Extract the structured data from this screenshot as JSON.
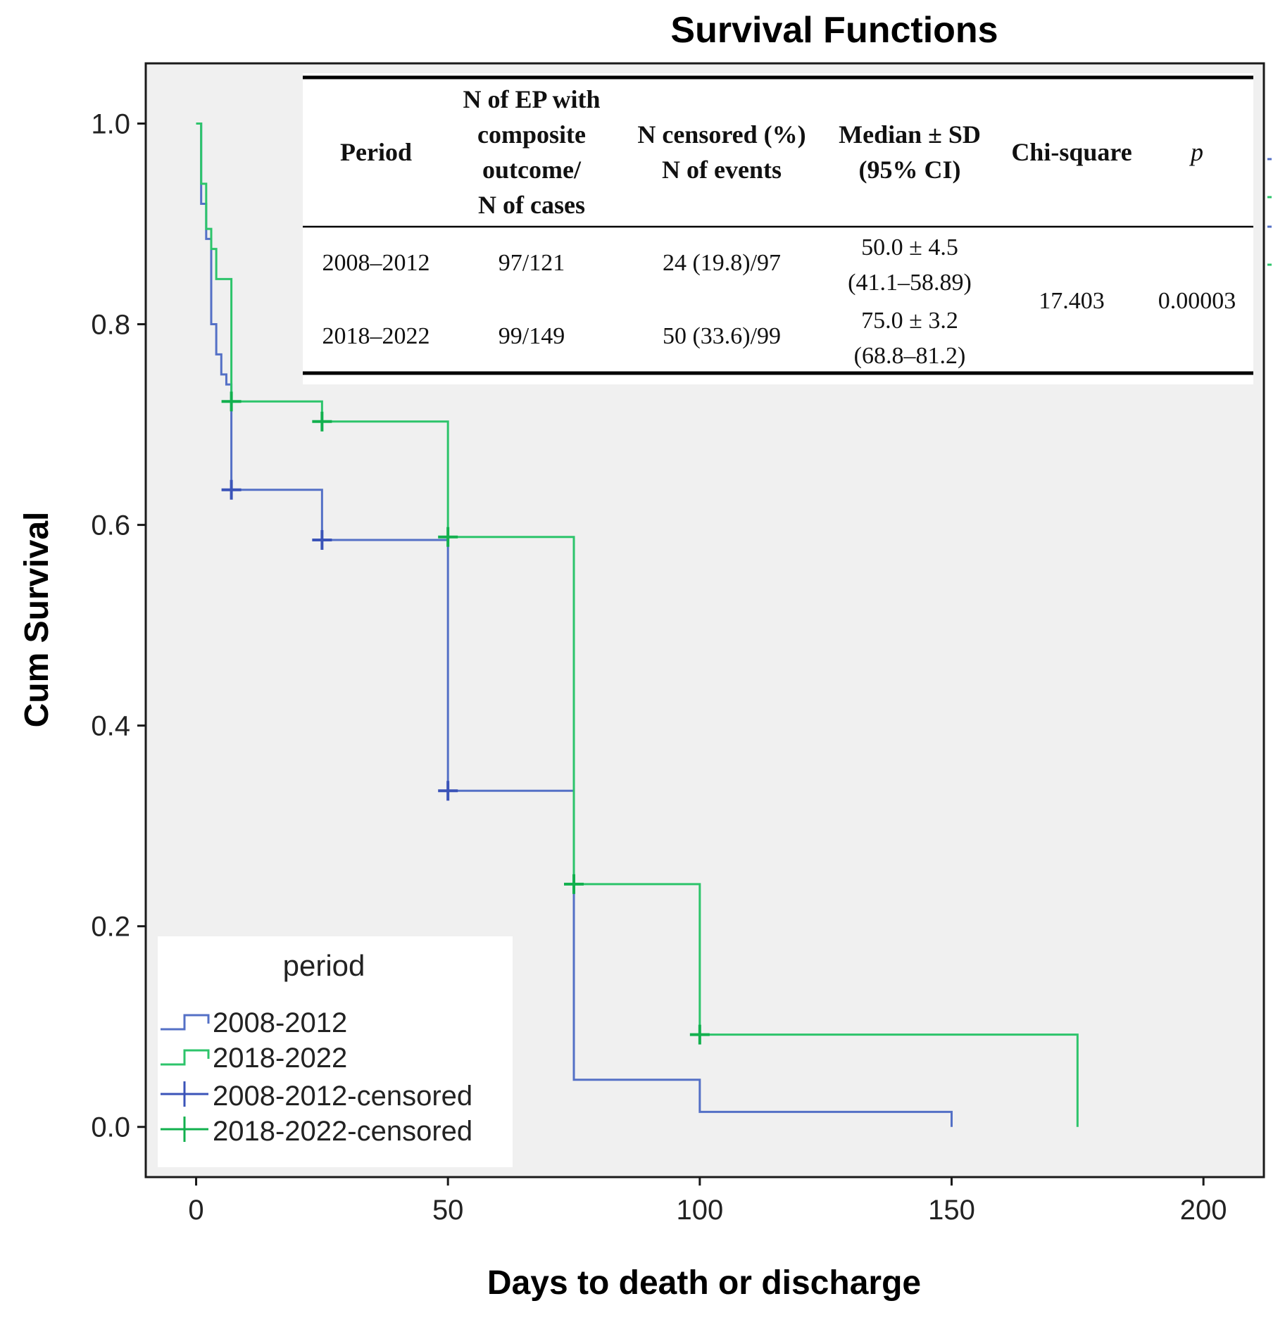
{
  "chart_data": {
    "type": "line",
    "subtype": "kaplan-meier-step",
    "title": "Survival Functions",
    "xlabel": "Days to death or discharge",
    "ylabel": "Cum Survival",
    "xlim": [
      -10,
      212
    ],
    "ylim": [
      -0.05,
      1.06
    ],
    "xticks": [
      0,
      50,
      100,
      150,
      200
    ],
    "yticks": [
      0.0,
      0.2,
      0.4,
      0.6,
      0.8,
      1.0
    ],
    "xtick_labels": [
      "0",
      "50",
      "100",
      "150",
      "200"
    ],
    "ytick_labels": [
      "0.0",
      "0.2",
      "0.4",
      "0.6",
      "0.8",
      "1.0"
    ],
    "legend": {
      "title": "period",
      "position": "bottom-left",
      "entries": [
        "2008-2012",
        "2018-2022",
        "2008-2012-censored",
        "2018-2022-censored"
      ]
    },
    "series": [
      {
        "name": "2008-2012",
        "color": "#5470c6",
        "censor_color": "#3a53b8",
        "steps": [
          [
            0,
            1.0
          ],
          [
            1,
            0.92
          ],
          [
            2,
            0.885
          ],
          [
            3,
            0.8
          ],
          [
            4,
            0.77
          ],
          [
            5,
            0.75
          ],
          [
            6,
            0.74
          ],
          [
            7,
            0.635
          ],
          [
            25,
            0.585
          ],
          [
            50,
            0.335
          ],
          [
            75,
            0.047
          ],
          [
            100,
            0.015
          ],
          [
            150,
            0.0
          ]
        ],
        "censored": [
          [
            7,
            0.635
          ],
          [
            25,
            0.585
          ],
          [
            50,
            0.335
          ]
        ]
      },
      {
        "name": "2018-2022",
        "color": "#2dc46b",
        "censor_color": "#12b04e",
        "steps": [
          [
            0,
            1.0
          ],
          [
            1,
            0.94
          ],
          [
            2,
            0.895
          ],
          [
            3,
            0.875
          ],
          [
            4,
            0.845
          ],
          [
            7,
            0.723
          ],
          [
            25,
            0.703
          ],
          [
            50,
            0.588
          ],
          [
            75,
            0.242
          ],
          [
            100,
            0.092
          ],
          [
            175,
            0.0
          ]
        ],
        "censored": [
          [
            7,
            0.723
          ],
          [
            25,
            0.703
          ],
          [
            50,
            0.588
          ],
          [
            75,
            0.242
          ],
          [
            100,
            0.092
          ]
        ]
      }
    ],
    "table": {
      "headers": [
        [
          "Period"
        ],
        [
          "N of EP with",
          "composite",
          "outcome/",
          "N of cases"
        ],
        [
          "N censored (%)",
          "N of events"
        ],
        [
          "Median ± SD",
          "(95% CI)"
        ],
        [
          "Chi-square"
        ],
        [
          "p"
        ]
      ],
      "rows": [
        {
          "period": "2008–2012",
          "n_ep": "97/121",
          "censored": "24 (19.8)/97",
          "median": "50.0 ± 4.5",
          "ci": "(41.1–58.89)"
        },
        {
          "period": "2018–2022",
          "n_ep": "99/149",
          "censored": "50 (33.6)/99",
          "median": "75.0 ± 3.2",
          "ci": "(68.8–81.2)"
        }
      ],
      "chi_square": "17.403",
      "p": "0.00003"
    }
  }
}
